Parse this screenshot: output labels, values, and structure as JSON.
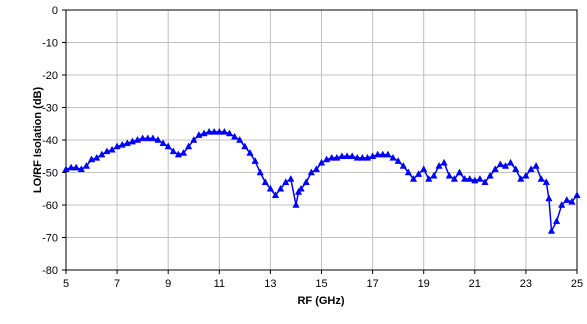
{
  "chart_data": {
    "type": "line",
    "title": "",
    "xlabel": "RF (GHz)",
    "ylabel": "LO/RF Isolation (dB)",
    "xlim": [
      5,
      25
    ],
    "ylim": [
      -80,
      0
    ],
    "x_ticks": [
      "5",
      "7",
      "9",
      "11",
      "13",
      "15",
      "17",
      "19",
      "21",
      "23",
      "25"
    ],
    "y_ticks": [
      "0",
      "-10",
      "-20",
      "-30",
      "-40",
      "-50",
      "-60",
      "-70",
      "-80"
    ],
    "grid": true,
    "legend": "none",
    "series": [
      {
        "color": "#0000ff",
        "marker": "triangle",
        "x": [
          5.0,
          5.2,
          5.4,
          5.6,
          5.8,
          6.0,
          6.2,
          6.4,
          6.6,
          6.8,
          7.0,
          7.2,
          7.4,
          7.6,
          7.8,
          8.0,
          8.2,
          8.4,
          8.6,
          8.8,
          9.0,
          9.2,
          9.4,
          9.6,
          9.8,
          10.0,
          10.2,
          10.4,
          10.6,
          10.8,
          11.0,
          11.2,
          11.4,
          11.6,
          11.8,
          12.0,
          12.2,
          12.4,
          12.6,
          12.8,
          13.0,
          13.2,
          13.4,
          13.6,
          13.8,
          14.0,
          14.1,
          14.2,
          14.4,
          14.6,
          14.8,
          15.0,
          15.2,
          15.4,
          15.6,
          15.8,
          16.0,
          16.2,
          16.4,
          16.6,
          16.8,
          17.0,
          17.2,
          17.4,
          17.6,
          17.8,
          18.0,
          18.2,
          18.4,
          18.6,
          18.8,
          19.0,
          19.2,
          19.4,
          19.6,
          19.8,
          20.0,
          20.2,
          20.4,
          20.6,
          20.8,
          21.0,
          21.2,
          21.4,
          21.6,
          21.8,
          22.0,
          22.2,
          22.4,
          22.6,
          22.8,
          23.0,
          23.2,
          23.4,
          23.6,
          23.8,
          23.9,
          24.0,
          24.2,
          24.4,
          24.6,
          24.8,
          25.0
        ],
        "y": [
          -49,
          -48.5,
          -48.5,
          -49,
          -48,
          -46,
          -45.5,
          -44.5,
          -43.5,
          -43,
          -42,
          -41.5,
          -41,
          -40.5,
          -40,
          -39.5,
          -39.5,
          -39.5,
          -40,
          -41,
          -42,
          -43.5,
          -44.5,
          -44,
          -42,
          -40,
          -38.5,
          -38,
          -37.5,
          -37.5,
          -37.5,
          -37.5,
          -38,
          -39,
          -40,
          -42,
          -44,
          -46.5,
          -50,
          -53,
          -55,
          -57,
          -55,
          -53,
          -52,
          -60,
          -56,
          -55,
          -53,
          -50,
          -49,
          -47,
          -46,
          -45.5,
          -45.5,
          -45,
          -45,
          -45,
          -45.5,
          -45.5,
          -45.5,
          -45,
          -44.5,
          -44.5,
          -44.5,
          -45.5,
          -46.5,
          -48,
          -50,
          -52,
          -50.5,
          -49,
          -52,
          -51,
          -48,
          -47,
          -51,
          -52,
          -50,
          -52,
          -52,
          -52.5,
          -52,
          -53,
          -51,
          -49,
          -47.5,
          -48,
          -47,
          -49,
          -52,
          -51,
          -49,
          -48,
          -52,
          -53,
          -58,
          -68,
          -65,
          -60,
          -58.5,
          -59,
          -57
        ]
      }
    ]
  }
}
